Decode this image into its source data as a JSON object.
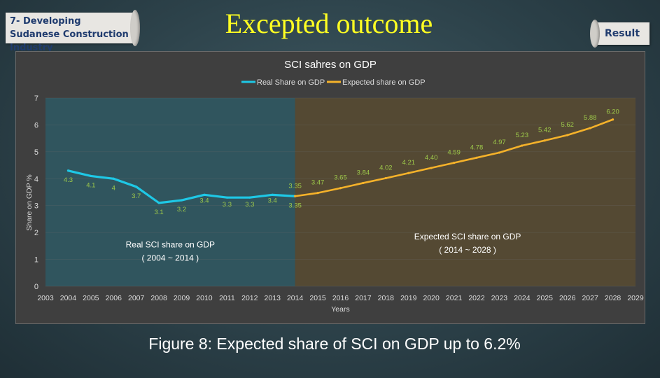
{
  "header": {
    "section_title": "7- Developing Sudanese Construction Industry",
    "main_title": "Excepted outcome",
    "result_tab": "Result"
  },
  "caption": "Figure 8: Expected share of SCI on GDP up to 6.2%",
  "colors": {
    "title": "#ffff22",
    "real_line": "#1ec8e6",
    "expected_line": "#f5b22a",
    "real_region": "#2f5660",
    "expected_region": "#554a33",
    "label_green": "#9ec94a"
  },
  "chart_data": {
    "type": "line",
    "title": "SCI sahres on GDP",
    "xlabel": "Years",
    "ylabel": "Share on GDP %",
    "xlim": [
      2003,
      2029
    ],
    "ylim": [
      0,
      7
    ],
    "x_ticks": [
      2003,
      2004,
      2005,
      2006,
      2007,
      2008,
      2009,
      2010,
      2011,
      2012,
      2013,
      2014,
      2015,
      2016,
      2017,
      2018,
      2019,
      2020,
      2021,
      2022,
      2023,
      2024,
      2025,
      2026,
      2027,
      2028,
      2029
    ],
    "y_ticks": [
      0,
      1,
      2,
      3,
      4,
      5,
      6,
      7
    ],
    "legend_position": "top-center",
    "series": [
      {
        "name": "Real Share on GDP",
        "color": "#1ec8e6",
        "x": [
          2004,
          2005,
          2006,
          2007,
          2008,
          2009,
          2010,
          2011,
          2012,
          2013,
          2014
        ],
        "values": [
          4.3,
          4.1,
          4.0,
          3.7,
          3.1,
          3.2,
          3.4,
          3.3,
          3.3,
          3.4,
          3.35
        ],
        "labels": [
          "4.3",
          "4.1",
          "4",
          "3.7",
          "3.1",
          "3.2",
          "3.4",
          "3.3",
          "3.3",
          "3.4",
          "3.35"
        ]
      },
      {
        "name": "Expected share on GDP",
        "color": "#f5b22a",
        "x": [
          2014,
          2015,
          2016,
          2017,
          2018,
          2019,
          2020,
          2021,
          2022,
          2023,
          2024,
          2025,
          2026,
          2027,
          2028
        ],
        "values": [
          3.35,
          3.47,
          3.65,
          3.84,
          4.02,
          4.21,
          4.4,
          4.59,
          4.78,
          4.97,
          5.23,
          5.42,
          5.62,
          5.88,
          6.2
        ],
        "labels": [
          "3.35",
          "3.47",
          "3.65",
          "3.84",
          "4.02",
          "4.21",
          "4.40",
          "4.59",
          "4.78",
          "4.97",
          "5.23",
          "5.42",
          "5.62",
          "5.88",
          "6.20"
        ]
      }
    ],
    "regions": [
      {
        "from": 2003,
        "to": 2014,
        "label_line1": "Real SCI share on GDP",
        "label_line2": "( 2004 ~ 2014 )"
      },
      {
        "from": 2014,
        "to": 2029,
        "label_line1": "Expected  SCI share on GDP",
        "label_line2": "( 2014 ~ 2028 )"
      }
    ]
  }
}
